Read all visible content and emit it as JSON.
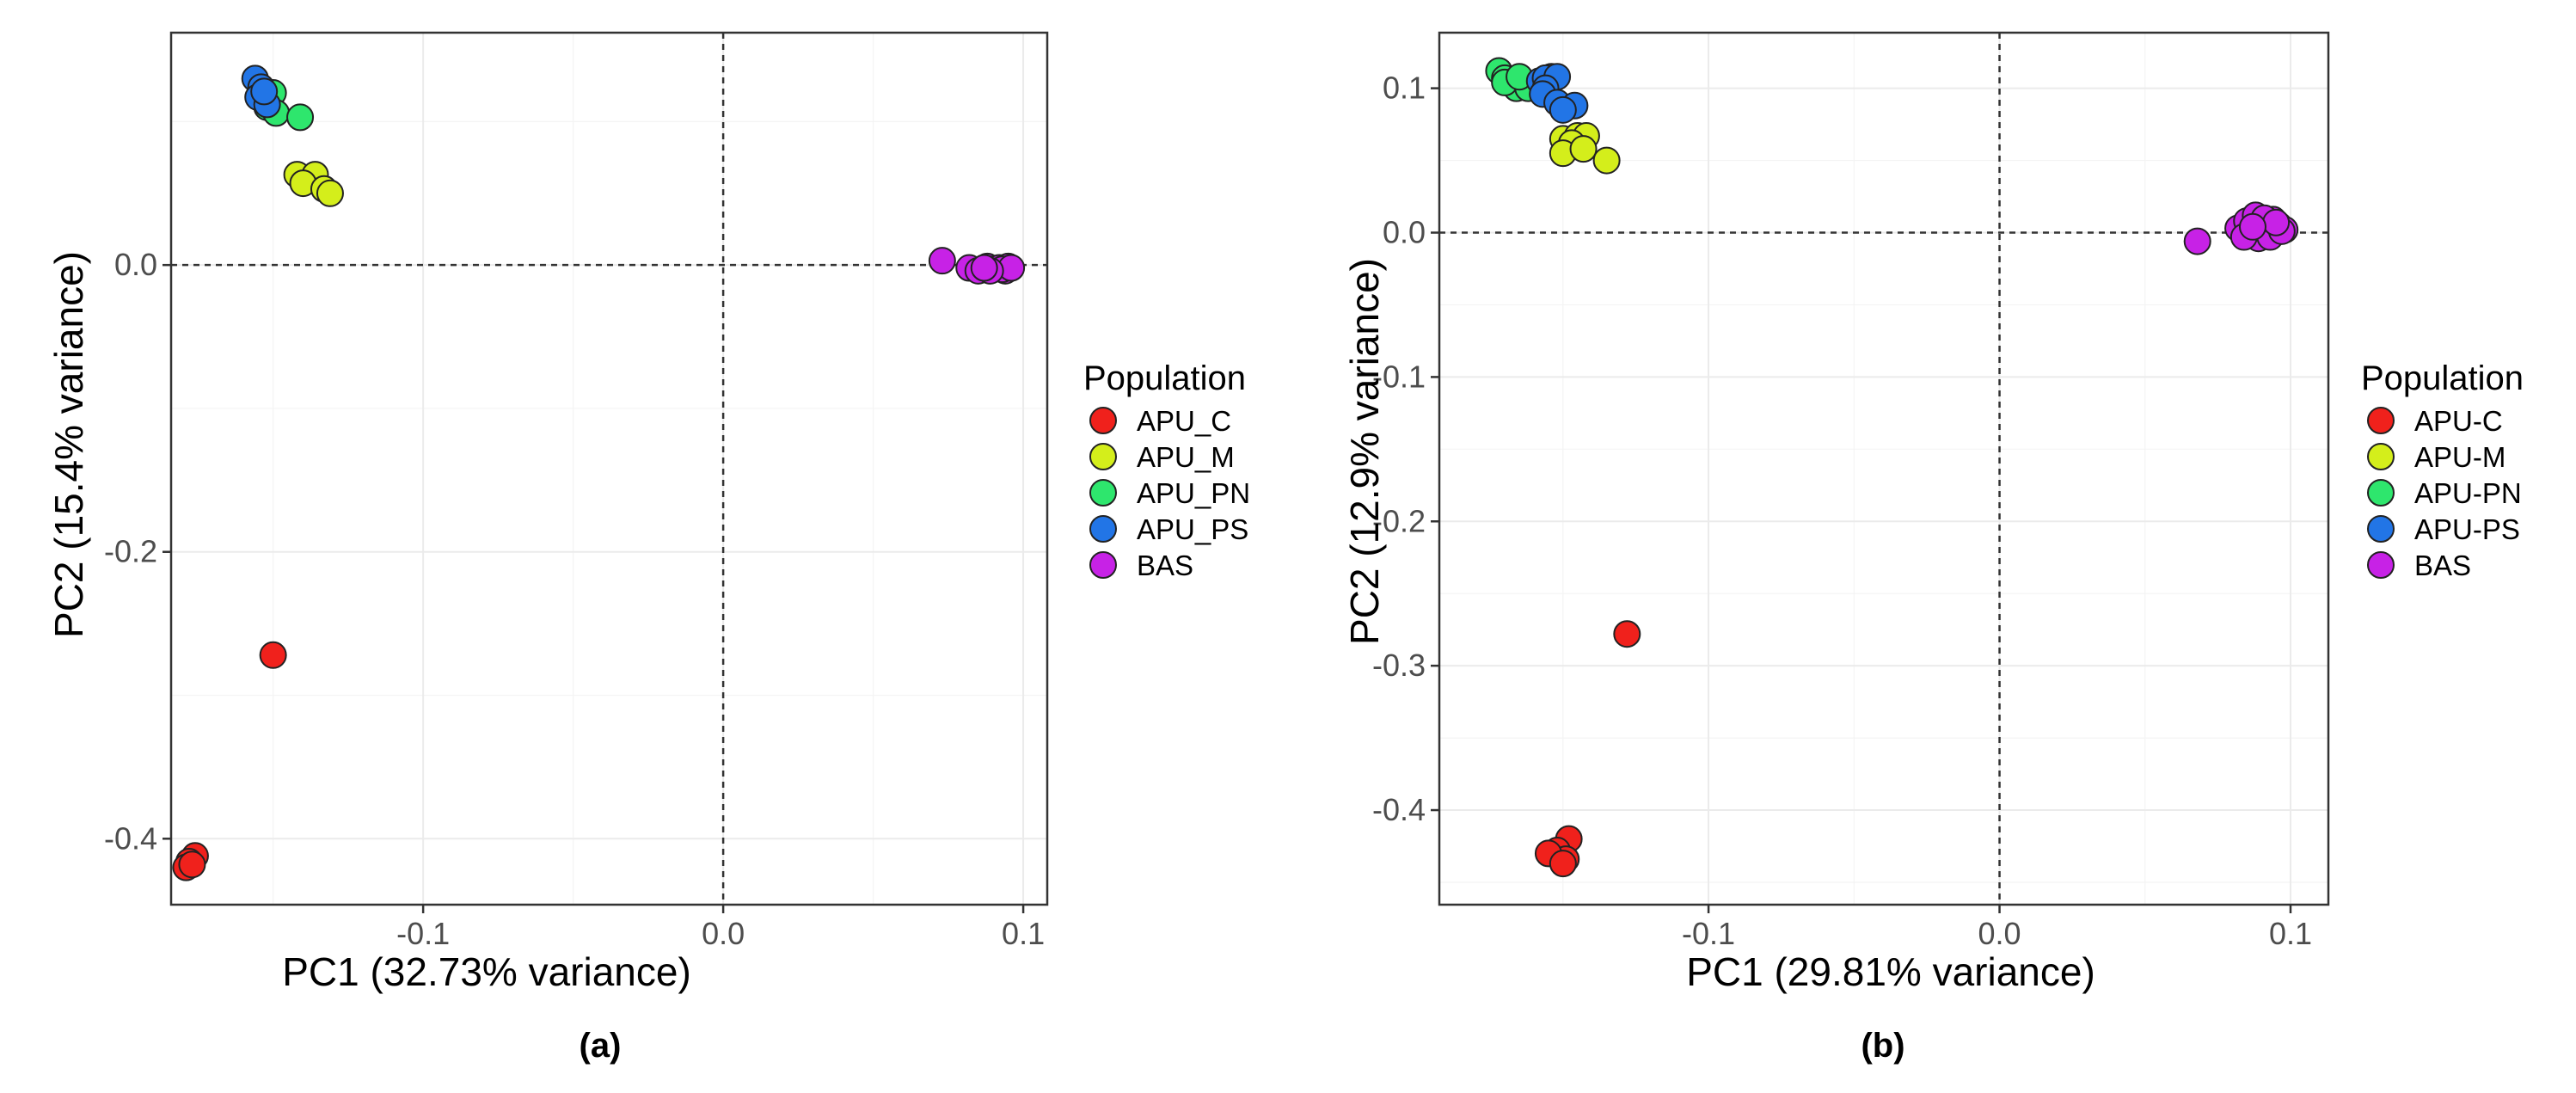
{
  "colors": {
    "APU_C": "#f0211c",
    "APU_M": "#d4ee1b",
    "APU_PN": "#2ee66d",
    "APU_PS": "#2275e6",
    "BAS": "#c722e6"
  },
  "chart_data": [
    {
      "type": "scatter",
      "caption": "(a)",
      "xlabel": "PC1 (32.73% variance)",
      "ylabel": "PC2 (15.4% variance)",
      "xlim": [
        -0.184,
        0.108
      ],
      "ylim": [
        -0.446,
        0.162
      ],
      "xticks": [
        -0.1,
        0.0,
        0.1
      ],
      "xtick_labels": [
        "-0.1",
        "0.0",
        "0.1"
      ],
      "yticks": [
        0.0,
        -0.2,
        -0.4
      ],
      "ytick_labels": [
        "0.0",
        "-0.2",
        "-0.4"
      ],
      "legend_title": "Population",
      "legend_labels": [
        "APU_C",
        "APU_M",
        "APU_PN",
        "APU_PS",
        "BAS"
      ],
      "series": [
        {
          "name": "APU_C",
          "color_key": "APU_C",
          "points": [
            [
              -0.15,
              -0.272
            ],
            [
              -0.176,
              -0.412
            ],
            [
              -0.178,
              -0.416
            ],
            [
              -0.179,
              -0.42
            ],
            [
              -0.177,
              -0.418
            ]
          ]
        },
        {
          "name": "APU_M",
          "color_key": "APU_M",
          "points": [
            [
              -0.142,
              0.063
            ],
            [
              -0.136,
              0.063
            ],
            [
              -0.14,
              0.057
            ],
            [
              -0.133,
              0.053
            ],
            [
              -0.131,
              0.05
            ]
          ]
        },
        {
          "name": "APU_PN",
          "color_key": "APU_PN",
          "points": [
            [
              -0.15,
              0.12
            ],
            [
              -0.152,
              0.11
            ],
            [
              -0.149,
              0.106
            ],
            [
              -0.141,
              0.103
            ]
          ]
        },
        {
          "name": "APU_PS",
          "color_key": "APU_PS",
          "points": [
            [
              -0.156,
              0.13
            ],
            [
              -0.154,
              0.124
            ],
            [
              -0.155,
              0.117
            ],
            [
              -0.152,
              0.112
            ],
            [
              -0.153,
              0.121
            ]
          ]
        },
        {
          "name": "BAS",
          "color_key": "BAS",
          "points": [
            [
              0.073,
              0.003
            ],
            [
              0.082,
              -0.002
            ],
            [
              0.085,
              -0.004
            ],
            [
              0.088,
              -0.001
            ],
            [
              0.09,
              -0.003
            ],
            [
              0.092,
              -0.002
            ],
            [
              0.094,
              -0.004
            ],
            [
              0.095,
              -0.001
            ],
            [
              0.093,
              -0.003
            ],
            [
              0.096,
              -0.002
            ],
            [
              0.089,
              -0.004
            ],
            [
              0.087,
              -0.002
            ]
          ]
        }
      ]
    },
    {
      "type": "scatter",
      "caption": "(b)",
      "xlabel": "PC1 (29.81% variance)",
      "ylabel": "PC2 (12.9% variance)",
      "xlim": [
        -0.1925,
        0.113
      ],
      "ylim": [
        -0.4655,
        0.1385
      ],
      "xticks": [
        -0.1,
        0.0,
        0.1
      ],
      "xtick_labels": [
        "-0.1",
        "0.0",
        "0.1"
      ],
      "yticks": [
        0.1,
        0.0,
        -0.1,
        -0.2,
        -0.3,
        -0.4
      ],
      "ytick_labels": [
        "0.1",
        "0.0",
        "-0.1",
        "-0.2",
        "-0.3",
        "-0.4"
      ],
      "legend_title": "Population",
      "legend_labels": [
        "APU-C",
        "APU-M",
        "APU-PN",
        "APU-PS",
        "BAS"
      ],
      "series": [
        {
          "name": "APU-C",
          "color_key": "APU_C",
          "points": [
            [
              -0.128,
              -0.278
            ],
            [
              -0.148,
              -0.42
            ],
            [
              -0.152,
              -0.428
            ],
            [
              -0.149,
              -0.434
            ],
            [
              -0.155,
              -0.43
            ],
            [
              -0.15,
              -0.437
            ]
          ]
        },
        {
          "name": "APU-M",
          "color_key": "APU_M",
          "points": [
            [
              -0.15,
              0.065
            ],
            [
              -0.145,
              0.067
            ],
            [
              -0.142,
              0.067
            ],
            [
              -0.147,
              0.062
            ],
            [
              -0.15,
              0.055
            ],
            [
              -0.143,
              0.058
            ],
            [
              -0.135,
              0.05
            ]
          ]
        },
        {
          "name": "APU-PN",
          "color_key": "APU_PN",
          "points": [
            [
              -0.172,
              0.112
            ],
            [
              -0.17,
              0.107
            ],
            [
              -0.166,
              0.1
            ],
            [
              -0.17,
              0.104
            ],
            [
              -0.162,
              0.1
            ],
            [
              -0.165,
              0.108
            ]
          ]
        },
        {
          "name": "APU-PS",
          "color_key": "APU_PS",
          "points": [
            [
              -0.158,
              0.105
            ],
            [
              -0.154,
              0.108
            ],
            [
              -0.156,
              0.107
            ],
            [
              -0.152,
              0.108
            ],
            [
              -0.156,
              0.1
            ],
            [
              -0.157,
              0.096
            ],
            [
              -0.152,
              0.09
            ],
            [
              -0.146,
              0.088
            ],
            [
              -0.15,
              0.085
            ]
          ]
        },
        {
          "name": "BAS",
          "color_key": "BAS",
          "points": [
            [
              0.068,
              -0.006
            ],
            [
              0.082,
              0.003
            ],
            [
              0.085,
              0.008
            ],
            [
              0.088,
              0.012
            ],
            [
              0.09,
              0.006
            ],
            [
              0.092,
              0.003
            ],
            [
              0.094,
              0.009
            ],
            [
              0.096,
              0.005
            ],
            [
              0.098,
              0.002
            ],
            [
              0.086,
              -0.002
            ],
            [
              0.089,
              -0.004
            ],
            [
              0.093,
              -0.003
            ],
            [
              0.097,
              0.001
            ],
            [
              0.084,
              -0.003
            ],
            [
              0.091,
              0.01
            ],
            [
              0.095,
              0.007
            ],
            [
              0.087,
              0.004
            ]
          ]
        }
      ]
    }
  ]
}
